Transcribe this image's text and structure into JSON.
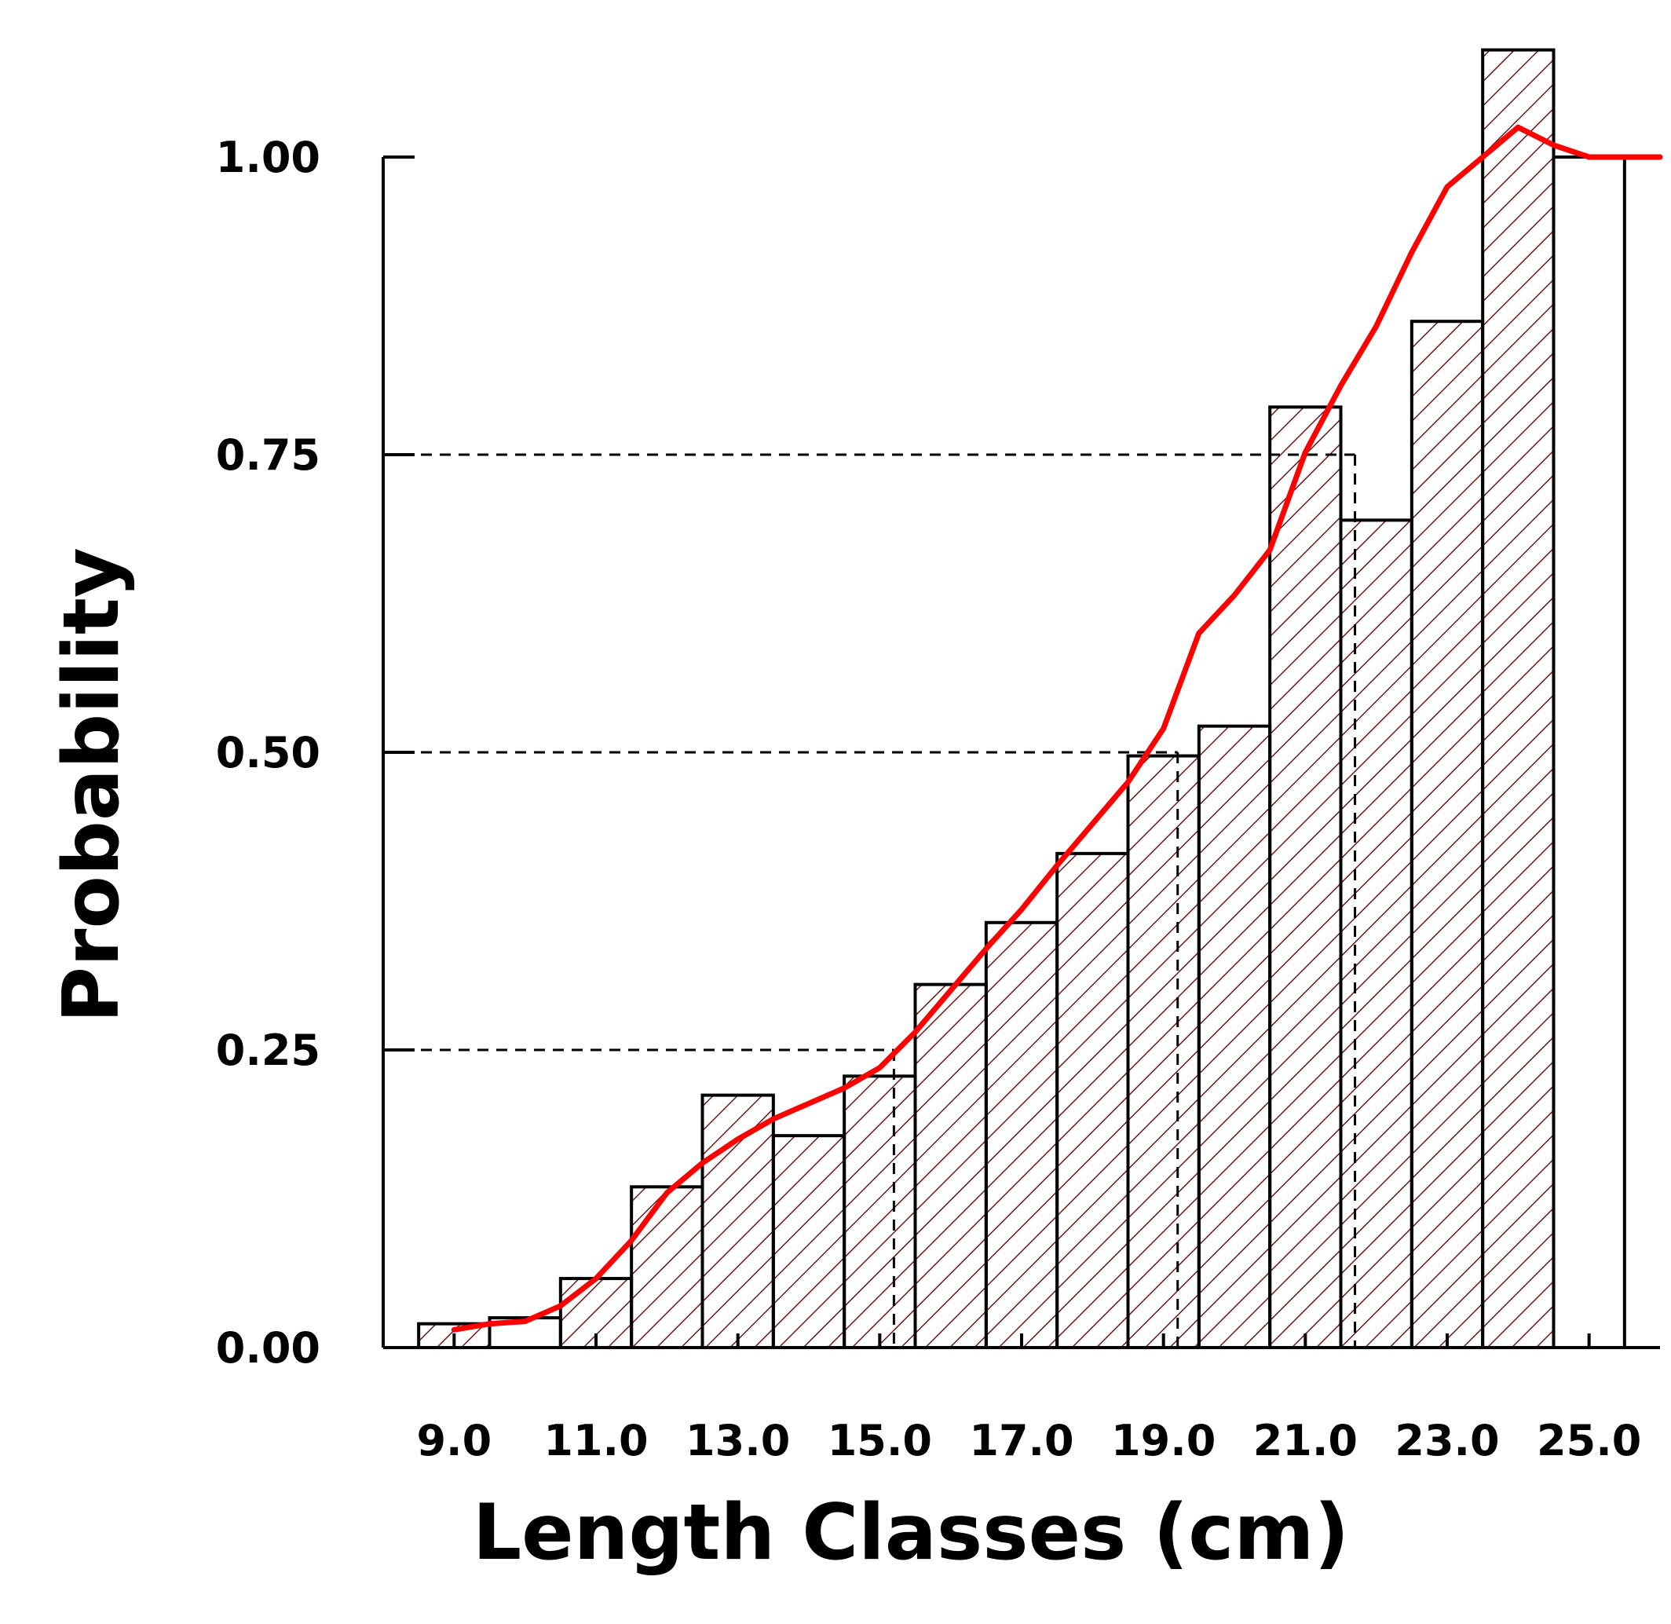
{
  "chart_data": {
    "type": "bar",
    "title": "",
    "xlabel": "Length Classes (cm)",
    "ylabel": "Probability",
    "ylim": [
      0,
      1.0
    ],
    "xlim": [
      8.0,
      26.0
    ],
    "y_ticks": [
      "0.00",
      "0.25",
      "0.50",
      "0.75",
      "1.00"
    ],
    "x_tick_labels": [
      "9.0",
      "11.0",
      "13.0",
      "15.0",
      "17.0",
      "19.0",
      "21.0",
      "23.0",
      "25.0"
    ],
    "bar_width": 1.0,
    "bars": [
      {
        "x": 9.0,
        "value": 0.02,
        "hatched": true
      },
      {
        "x": 10.0,
        "value": 0.025,
        "hatched": false
      },
      {
        "x": 11.0,
        "value": 0.058,
        "hatched": true
      },
      {
        "x": 12.0,
        "value": 0.135,
        "hatched": true
      },
      {
        "x": 13.0,
        "value": 0.212,
        "hatched": true
      },
      {
        "x": 14.0,
        "value": 0.178,
        "hatched": true
      },
      {
        "x": 15.0,
        "value": 0.228,
        "hatched": true
      },
      {
        "x": 16.0,
        "value": 0.305,
        "hatched": true
      },
      {
        "x": 17.0,
        "value": 0.357,
        "hatched": true
      },
      {
        "x": 18.0,
        "value": 0.415,
        "hatched": true
      },
      {
        "x": 19.0,
        "value": 0.497,
        "hatched": true
      },
      {
        "x": 20.0,
        "value": 0.522,
        "hatched": true
      },
      {
        "x": 21.0,
        "value": 0.79,
        "hatched": true
      },
      {
        "x": 22.0,
        "value": 0.695,
        "hatched": true
      },
      {
        "x": 23.0,
        "value": 0.862,
        "hatched": true
      },
      {
        "x": 24.0,
        "value": 1.09,
        "hatched": true
      },
      {
        "x": 25.0,
        "value": 1.0,
        "hatched": false
      }
    ],
    "fitted_curve": {
      "color": "#ff0000",
      "x": [
        9.0,
        9.5,
        10.0,
        10.5,
        11.0,
        11.5,
        12.0,
        12.5,
        13.0,
        13.5,
        14.0,
        14.5,
        15.0,
        15.5,
        16.0,
        16.5,
        17.0,
        17.5,
        18.0,
        18.5,
        19.0,
        19.5,
        20.0,
        20.5,
        21.0,
        21.5,
        22.0,
        22.5,
        23.0,
        23.5,
        24.0,
        24.5,
        25.0,
        25.5,
        26.0
      ],
      "y": [
        0.015,
        0.02,
        0.022,
        0.035,
        0.058,
        0.09,
        0.13,
        0.155,
        0.175,
        0.192,
        0.205,
        0.218,
        0.235,
        0.265,
        0.3,
        0.335,
        0.368,
        0.405,
        0.44,
        0.475,
        0.52,
        0.6,
        0.632,
        0.67,
        0.752,
        0.808,
        0.858,
        0.92,
        0.975,
        1.0,
        1.025,
        1.01,
        1.0,
        1.0,
        1.0
      ]
    },
    "reference_lines": {
      "style": "dashed",
      "levels": [
        {
          "y": 0.25,
          "x": 15.2
        },
        {
          "y": 0.5,
          "x": 19.2
        },
        {
          "y": 0.75,
          "x": 21.7
        }
      ]
    },
    "grid": false,
    "legend": "none",
    "hatch_color": "#6b1a1a"
  }
}
